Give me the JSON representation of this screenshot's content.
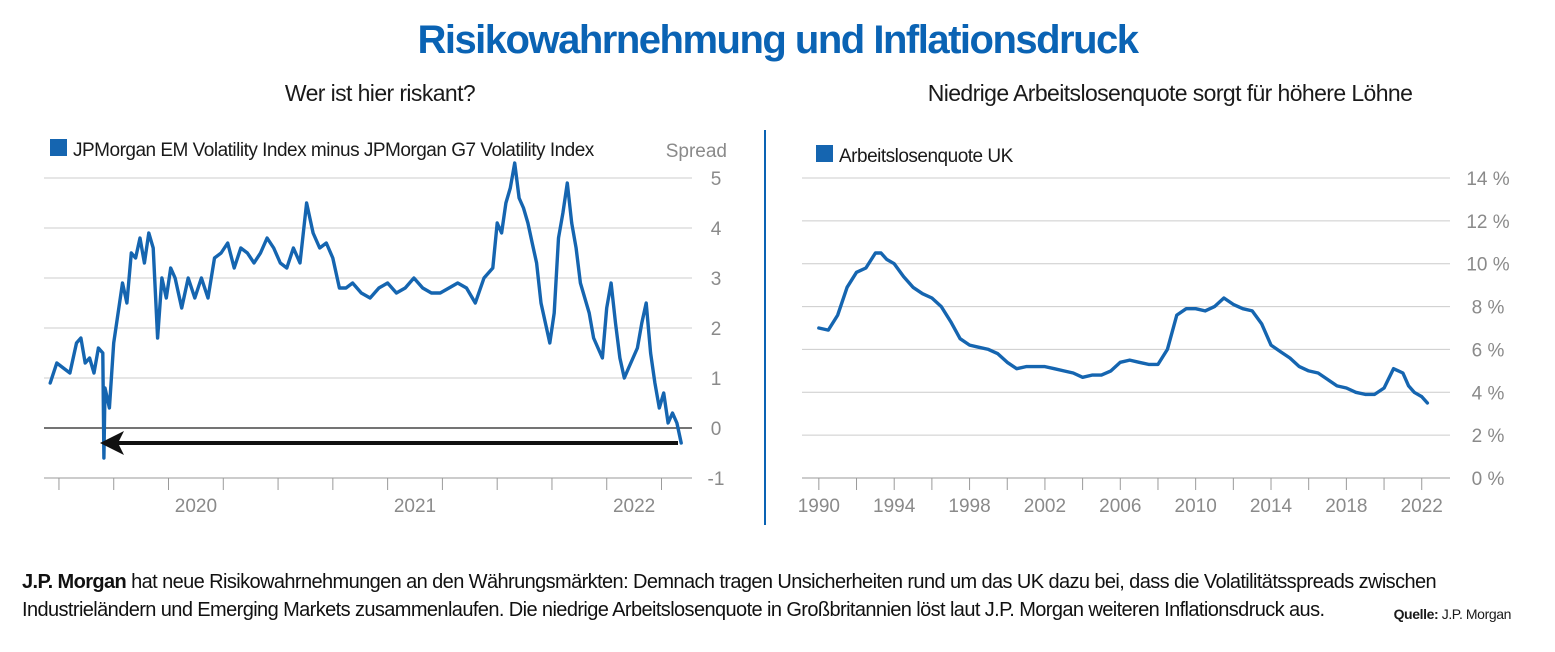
{
  "title": "Risikowahrnehmung und Inflationsdruck",
  "caption": {
    "lead": "J.P. Morgan",
    "text": "hat neue Risikowahrnehmungen an den Währungsmärkten: Demnach tragen Unsicherheiten rund um das UK dazu bei, dass die Volatilitätsspreads zwischen Industrieländern und Emerging Markets zusammenlaufen. Die niedrige Arbeitslosenquote in Großbritannien löst laut J.P. Morgan weiteren Inflationsdruck aus."
  },
  "source": {
    "label": "Quelle:",
    "value": "J.P. Morgan"
  },
  "colors": {
    "accent": "#0a63b4",
    "line": "#1565b0",
    "grid": "#cccccc",
    "tick": "#8a8a8a"
  },
  "chart_data": [
    {
      "type": "line",
      "title": "Wer ist hier riskant?",
      "ylabel": "Spread",
      "legend": "JPMorgan EM Volatility Index minus JPMorgan G7 Volatility Index",
      "legend_position": "top-left",
      "ylim": [
        -1,
        5
      ],
      "yticks": [
        "5",
        "4",
        "3",
        "2",
        "1",
        "0",
        "-1"
      ],
      "xlim": [
        2019.45,
        2022.38
      ],
      "xticks": [
        "2020",
        "2021",
        "2022"
      ],
      "annotation": "arrow pointing left along the spread level of about -0.3",
      "grid": "horizontal",
      "x": [
        2019.46,
        2019.49,
        2019.52,
        2019.55,
        2019.58,
        2019.6,
        2019.62,
        2019.64,
        2019.66,
        2019.68,
        2019.7,
        2019.705,
        2019.71,
        2019.73,
        2019.75,
        2019.77,
        2019.79,
        2019.81,
        2019.83,
        2019.85,
        2019.87,
        2019.89,
        2019.91,
        2019.93,
        2019.95,
        2019.97,
        2019.99,
        2020.01,
        2020.03,
        2020.06,
        2020.09,
        2020.12,
        2020.15,
        2020.18,
        2020.21,
        2020.24,
        2020.27,
        2020.3,
        2020.33,
        2020.36,
        2020.39,
        2020.42,
        2020.45,
        2020.48,
        2020.51,
        2020.54,
        2020.57,
        2020.6,
        2020.63,
        2020.66,
        2020.69,
        2020.72,
        2020.75,
        2020.78,
        2020.81,
        2020.84,
        2020.88,
        2020.92,
        2020.96,
        2021.0,
        2021.04,
        2021.08,
        2021.12,
        2021.16,
        2021.2,
        2021.24,
        2021.28,
        2021.32,
        2021.36,
        2021.4,
        2021.44,
        2021.48,
        2021.5,
        2021.52,
        2021.54,
        2021.56,
        2021.58,
        2021.6,
        2021.62,
        2021.64,
        2021.66,
        2021.68,
        2021.7,
        2021.72,
        2021.74,
        2021.76,
        2021.78,
        2021.8,
        2021.82,
        2021.84,
        2021.86,
        2021.88,
        2021.9,
        2021.92,
        2021.94,
        2021.96,
        2021.98,
        2022.0,
        2022.02,
        2022.04,
        2022.06,
        2022.08,
        2022.1,
        2022.12,
        2022.14,
        2022.16,
        2022.18,
        2022.2,
        2022.22,
        2022.24,
        2022.26,
        2022.28,
        2022.3,
        2022.32,
        2022.34
      ],
      "values": [
        0.9,
        1.3,
        1.2,
        1.1,
        1.7,
        1.8,
        1.3,
        1.4,
        1.1,
        1.6,
        1.5,
        -0.6,
        0.8,
        0.4,
        1.7,
        2.3,
        2.9,
        2.5,
        3.5,
        3.4,
        3.8,
        3.3,
        3.9,
        3.6,
        1.8,
        3.0,
        2.6,
        3.2,
        3.0,
        2.4,
        3.0,
        2.6,
        3.0,
        2.6,
        3.4,
        3.5,
        3.7,
        3.2,
        3.6,
        3.5,
        3.3,
        3.5,
        3.8,
        3.6,
        3.3,
        3.2,
        3.6,
        3.3,
        4.5,
        3.9,
        3.6,
        3.7,
        3.4,
        2.8,
        2.8,
        2.9,
        2.7,
        2.6,
        2.8,
        2.9,
        2.7,
        2.8,
        3.0,
        2.8,
        2.7,
        2.7,
        2.8,
        2.9,
        2.8,
        2.5,
        3.0,
        3.2,
        4.1,
        3.9,
        4.5,
        4.8,
        5.3,
        4.6,
        4.4,
        4.1,
        3.7,
        3.3,
        2.5,
        2.1,
        1.7,
        2.3,
        3.8,
        4.3,
        4.9,
        4.1,
        3.6,
        2.9,
        2.6,
        2.3,
        1.8,
        1.6,
        1.4,
        2.4,
        2.9,
        2.1,
        1.4,
        1.0,
        1.2,
        1.4,
        1.6,
        2.1,
        2.5,
        1.5,
        0.9,
        0.4,
        0.7,
        0.1,
        0.3,
        0.1,
        -0.3
      ]
    },
    {
      "type": "line",
      "title": "Niedrige Arbeitslosenquote sorgt für höhere Löhne",
      "legend": "Arbeitslosenquote UK",
      "legend_position": "top-left",
      "ylim": [
        0,
        14
      ],
      "yticks": [
        "14 %",
        "12 %",
        "10 %",
        "8 %",
        "6 %",
        "4 %",
        "2 %",
        "0 %"
      ],
      "xlim": [
        1989,
        2023.5
      ],
      "xticks": [
        "1990",
        "1994",
        "1998",
        "2002",
        "2006",
        "2010",
        "2014",
        "2018",
        "2022"
      ],
      "grid": "horizontal",
      "x": [
        1990,
        1990.5,
        1991,
        1991.5,
        1992,
        1992.5,
        1993,
        1993.3,
        1993.6,
        1994,
        1994.5,
        1995,
        1995.5,
        1996,
        1996.5,
        1997,
        1997.5,
        1998,
        1998.5,
        1999,
        1999.5,
        2000,
        2000.5,
        2001,
        2001.5,
        2002,
        2002.5,
        2003,
        2003.5,
        2004,
        2004.5,
        2005,
        2005.5,
        2006,
        2006.5,
        2007,
        2007.5,
        2008,
        2008.5,
        2009,
        2009.5,
        2010,
        2010.5,
        2011,
        2011.5,
        2012,
        2012.5,
        2013,
        2013.5,
        2014,
        2014.5,
        2015,
        2015.5,
        2016,
        2016.5,
        2017,
        2017.5,
        2018,
        2018.5,
        2019,
        2019.5,
        2020,
        2020.5,
        2021,
        2021.3,
        2021.6,
        2022,
        2022.3
      ],
      "values": [
        7.0,
        6.9,
        7.6,
        8.9,
        9.6,
        9.8,
        10.5,
        10.5,
        10.2,
        10.0,
        9.4,
        8.9,
        8.6,
        8.4,
        8.0,
        7.3,
        6.5,
        6.2,
        6.1,
        6.0,
        5.8,
        5.4,
        5.1,
        5.2,
        5.2,
        5.2,
        5.1,
        5.0,
        4.9,
        4.7,
        4.8,
        4.8,
        5.0,
        5.4,
        5.5,
        5.4,
        5.3,
        5.3,
        6.0,
        7.6,
        7.9,
        7.9,
        7.8,
        8.0,
        8.4,
        8.1,
        7.9,
        7.8,
        7.2,
        6.2,
        5.9,
        5.6,
        5.2,
        5.0,
        4.9,
        4.6,
        4.3,
        4.2,
        4.0,
        3.9,
        3.9,
        4.2,
        5.1,
        4.9,
        4.3,
        4.0,
        3.8,
        3.5
      ]
    }
  ]
}
